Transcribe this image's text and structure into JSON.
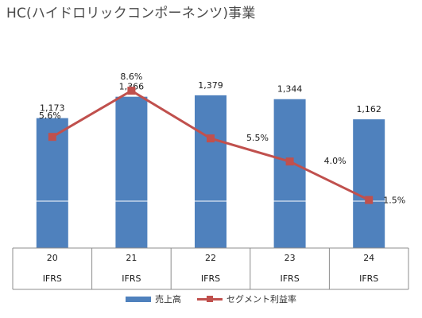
{
  "title": "HC(ハイドロリックコンポーネンツ)事業",
  "chart_data": {
    "type": "bar+line",
    "categories": [
      "20",
      "21",
      "22",
      "23",
      "24"
    ],
    "category_sublabels": [
      "IFRS",
      "IFRS",
      "IFRS",
      "IFRS",
      "IFRS"
    ],
    "series": [
      {
        "name": "売上高",
        "type": "bar",
        "color": "#4f81bd",
        "values": [
          1173,
          1366,
          1379,
          1344,
          1162
        ],
        "labels": [
          "1,173",
          "1,366",
          "1,379",
          "1,344",
          "1,162"
        ]
      },
      {
        "name": "セグメント利益率",
        "type": "line",
        "color": "#c0504d",
        "values": [
          5.6,
          8.6,
          5.5,
          4.0,
          1.5
        ],
        "labels": [
          "5.6%",
          "8.6%",
          "5.5%",
          "4.0%",
          "1.5%"
        ]
      }
    ],
    "legend_position": "bottom",
    "grid": false
  }
}
